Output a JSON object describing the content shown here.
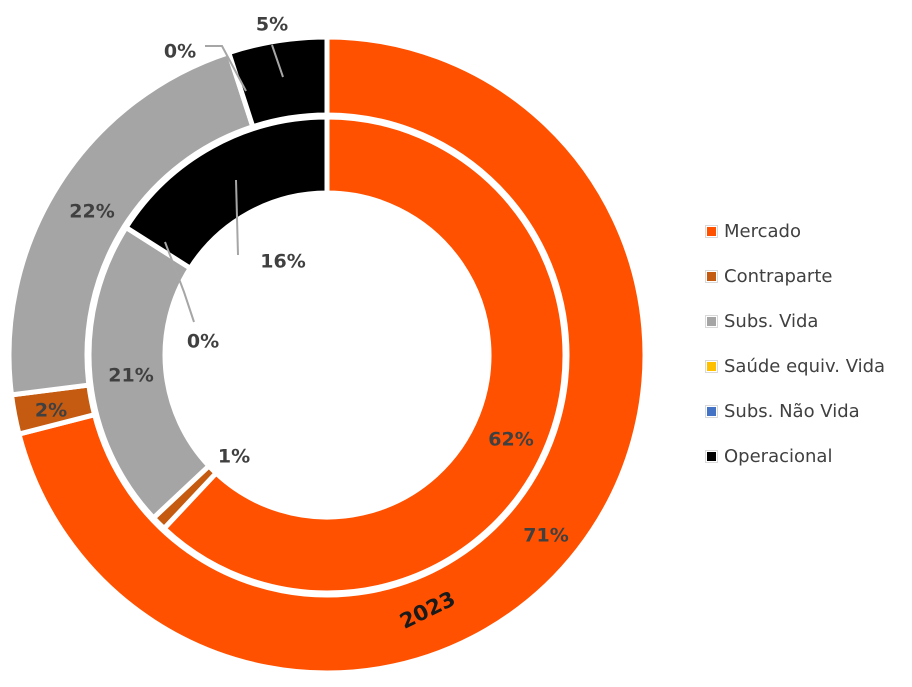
{
  "chart_data": {
    "type": "pie",
    "variant": "nested-donut",
    "title": "",
    "legend_position": "right",
    "categories": [
      "Mercado",
      "Contraparte",
      "Subs. Vida",
      "Saúde equiv. Vida",
      "Subs. Não Vida",
      "Operacional"
    ],
    "colors": [
      "#ff5100",
      "#c55a11",
      "#a5a5a5",
      "#ffc000",
      "#4472c4",
      "#000000"
    ],
    "series": [
      {
        "name": "2023",
        "ring": "outer",
        "values": [
          71,
          2,
          22,
          0,
          0,
          5
        ],
        "labels": [
          "71%",
          "2%",
          "22%",
          "0%",
          "0%",
          "5%"
        ]
      },
      {
        "name": "",
        "ring": "inner",
        "values": [
          62,
          1,
          21,
          0,
          0,
          16
        ],
        "labels": [
          "62%",
          "1%",
          "21%",
          "0%",
          "0%",
          "16%"
        ]
      }
    ]
  }
}
